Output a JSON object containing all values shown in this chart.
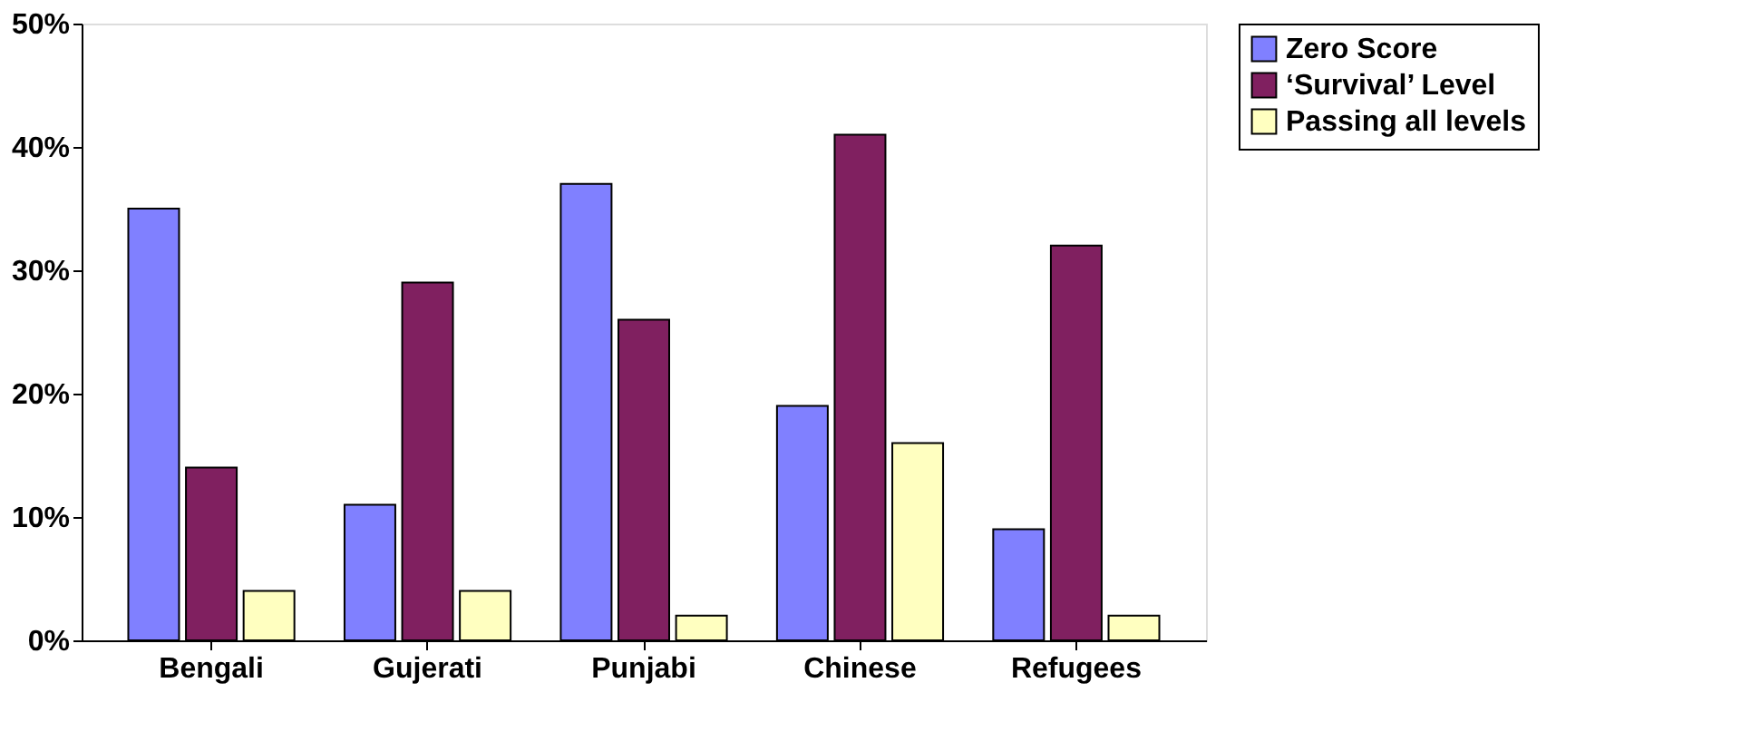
{
  "chart_data": {
    "type": "bar",
    "categories": [
      "Bengali",
      "Gujerati",
      "Punjabi",
      "Chinese",
      "Refugees"
    ],
    "series": [
      {
        "name": "Zero Score",
        "color": "#8080ff",
        "values": [
          35,
          11,
          37,
          19,
          9
        ]
      },
      {
        "name": "‘Survival’ Level",
        "color": "#802060",
        "values": [
          14,
          29,
          26,
          41,
          32
        ]
      },
      {
        "name": "Passing all levels",
        "color": "#ffffc0",
        "values": [
          4,
          4,
          2,
          16,
          2
        ]
      }
    ],
    "ylim": [
      0,
      50
    ],
    "yticks": [
      {
        "value": 0,
        "label": "0%"
      },
      {
        "value": 10,
        "label": "10%"
      },
      {
        "value": 20,
        "label": "20%"
      },
      {
        "value": 30,
        "label": "30%"
      },
      {
        "value": 40,
        "label": "40%"
      },
      {
        "value": 50,
        "label": "50%"
      }
    ],
    "grid": false,
    "legend": "top right"
  }
}
